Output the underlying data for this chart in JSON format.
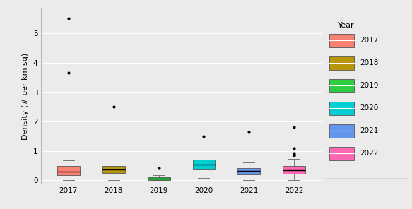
{
  "years": [
    "2017",
    "2018",
    "2019",
    "2020",
    "2021",
    "2022"
  ],
  "box_fill_colors": {
    "2017": "#FA8072",
    "2018": "#B8960C",
    "2019": "#2ECC40",
    "2020": "#00CED1",
    "2021": "#6495ED",
    "2022": "#FF69B4"
  },
  "stats": {
    "2017": {
      "q1": 0.17,
      "median": 0.3,
      "q3": 0.5,
      "whislo": 0.0,
      "whishi": 0.68,
      "fliers": [
        3.65,
        5.5
      ]
    },
    "2018": {
      "q1": 0.24,
      "median": 0.36,
      "q3": 0.48,
      "whislo": 0.0,
      "whishi": 0.7,
      "fliers": [
        2.52
      ]
    },
    "2019": {
      "q1": 0.02,
      "median": 0.06,
      "q3": 0.1,
      "whislo": 0.0,
      "whishi": 0.18,
      "fliers": [
        0.42
      ]
    },
    "2020": {
      "q1": 0.38,
      "median": 0.54,
      "q3": 0.7,
      "whislo": 0.08,
      "whishi": 0.88,
      "fliers": [
        1.5
      ]
    },
    "2021": {
      "q1": 0.2,
      "median": 0.32,
      "q3": 0.43,
      "whislo": 0.0,
      "whishi": 0.62,
      "fliers": [
        1.65
      ]
    },
    "2022": {
      "q1": 0.22,
      "median": 0.35,
      "q3": 0.5,
      "whislo": 0.0,
      "whishi": 0.72,
      "fliers": [
        1.82,
        1.1,
        0.92,
        0.88,
        0.84
      ]
    }
  },
  "ylabel": "Density (# per km sq)",
  "ylim": [
    -0.12,
    5.85
  ],
  "yticks": [
    0,
    1,
    2,
    3,
    4,
    5
  ],
  "background_color": "#EBEBEB",
  "grid_color": "#FFFFFF",
  "legend_title": "Year",
  "legend_bg": "#EBEBEB"
}
